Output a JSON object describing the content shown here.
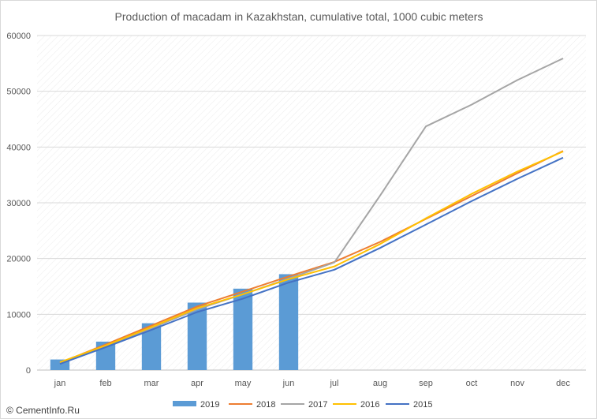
{
  "chart_data": {
    "type": "bar",
    "title": "Production of macadam in Kazakhstan, cumulative total, 1000 cubic meters",
    "categories": [
      "jan",
      "feb",
      "mar",
      "apr",
      "may",
      "jun",
      "jul",
      "aug",
      "sep",
      "oct",
      "nov",
      "dec"
    ],
    "ylim": [
      0,
      60000
    ],
    "yticks": [
      0,
      10000,
      20000,
      30000,
      40000,
      50000,
      60000
    ],
    "grid": true,
    "legend_position": "bottom",
    "series": [
      {
        "name": "2019",
        "type": "bar",
        "color": "#5b9bd5",
        "values": [
          1900,
          5100,
          8400,
          12100,
          14600,
          17200,
          null,
          null,
          null,
          null,
          null,
          null
        ]
      },
      {
        "name": "2018",
        "type": "line",
        "color": "#ed7d31",
        "values": [
          1300,
          4600,
          8000,
          11400,
          14100,
          16800,
          19400,
          23000,
          27100,
          31200,
          35300,
          39300
        ]
      },
      {
        "name": "2017",
        "type": "line",
        "color": "#a5a5a5",
        "values": [
          1200,
          4200,
          7500,
          10900,
          13600,
          16400,
          19300,
          31300,
          43700,
          47600,
          52000,
          55900
        ]
      },
      {
        "name": "2016",
        "type": "line",
        "color": "#ffc000",
        "values": [
          1400,
          4400,
          7700,
          11100,
          13600,
          16300,
          18600,
          22600,
          27200,
          31600,
          35600,
          39200
        ]
      },
      {
        "name": "2015",
        "type": "line",
        "color": "#4472c4",
        "values": [
          1100,
          4100,
          7200,
          10400,
          12800,
          15700,
          18000,
          21900,
          26100,
          30300,
          34300,
          38100
        ]
      }
    ]
  },
  "credit": {
    "text": "© CementInfo.Ru"
  }
}
